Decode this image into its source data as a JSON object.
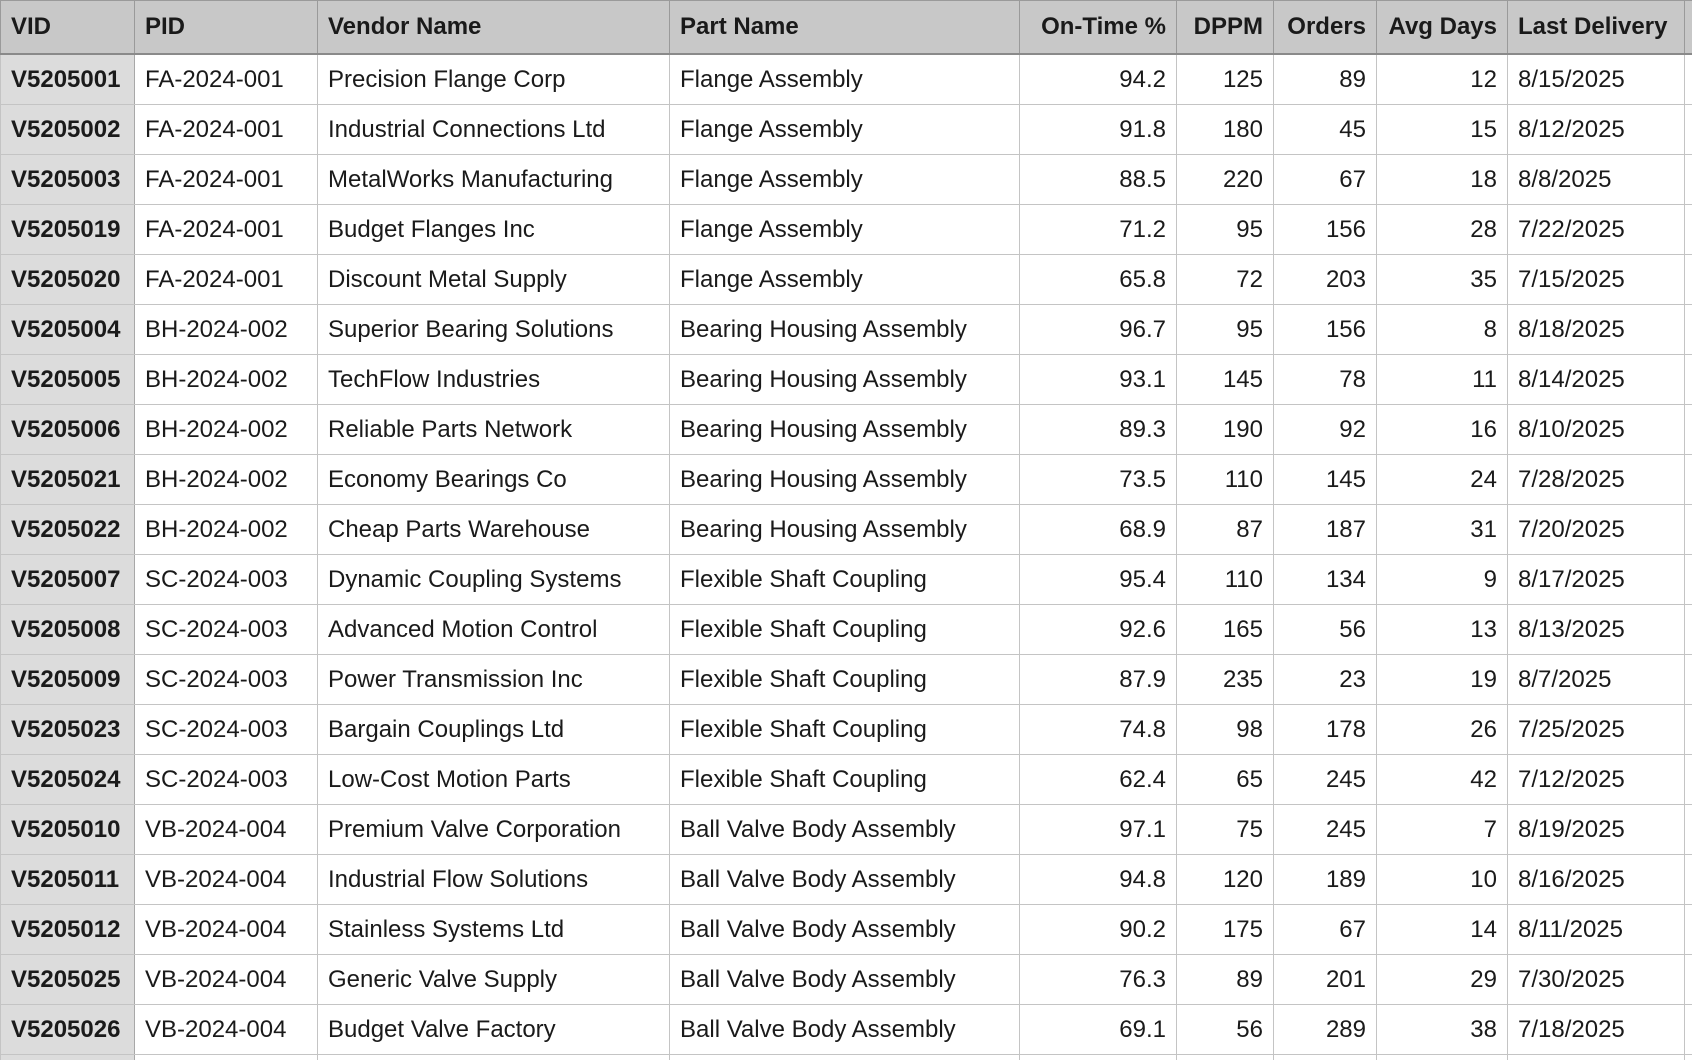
{
  "columns": [
    "VID",
    "PID",
    "Vendor Name",
    "Part Name",
    "On-Time %",
    "DPPM",
    "Orders",
    "Avg Days",
    "Last Delivery"
  ],
  "rows": [
    {
      "vid": "V5205001",
      "pid": "FA-2024-001",
      "vendor": "Precision Flange Corp",
      "part": "Flange Assembly",
      "ontime": "94.2",
      "dppm": "125",
      "orders": "89",
      "avg_days": "12",
      "last_delivery": "8/15/2025"
    },
    {
      "vid": "V5205002",
      "pid": "FA-2024-001",
      "vendor": "Industrial Connections Ltd",
      "part": "Flange Assembly",
      "ontime": "91.8",
      "dppm": "180",
      "orders": "45",
      "avg_days": "15",
      "last_delivery": "8/12/2025"
    },
    {
      "vid": "V5205003",
      "pid": "FA-2024-001",
      "vendor": "MetalWorks Manufacturing",
      "part": "Flange Assembly",
      "ontime": "88.5",
      "dppm": "220",
      "orders": "67",
      "avg_days": "18",
      "last_delivery": "8/8/2025"
    },
    {
      "vid": "V5205019",
      "pid": "FA-2024-001",
      "vendor": "Budget Flanges Inc",
      "part": "Flange Assembly",
      "ontime": "71.2",
      "dppm": "95",
      "orders": "156",
      "avg_days": "28",
      "last_delivery": "7/22/2025"
    },
    {
      "vid": "V5205020",
      "pid": "FA-2024-001",
      "vendor": "Discount Metal Supply",
      "part": "Flange Assembly",
      "ontime": "65.8",
      "dppm": "72",
      "orders": "203",
      "avg_days": "35",
      "last_delivery": "7/15/2025"
    },
    {
      "vid": "V5205004",
      "pid": "BH-2024-002",
      "vendor": "Superior Bearing Solutions",
      "part": "Bearing Housing Assembly",
      "ontime": "96.7",
      "dppm": "95",
      "orders": "156",
      "avg_days": "8",
      "last_delivery": "8/18/2025"
    },
    {
      "vid": "V5205005",
      "pid": "BH-2024-002",
      "vendor": "TechFlow Industries",
      "part": "Bearing Housing Assembly",
      "ontime": "93.1",
      "dppm": "145",
      "orders": "78",
      "avg_days": "11",
      "last_delivery": "8/14/2025"
    },
    {
      "vid": "V5205006",
      "pid": "BH-2024-002",
      "vendor": "Reliable Parts Network",
      "part": "Bearing Housing Assembly",
      "ontime": "89.3",
      "dppm": "190",
      "orders": "92",
      "avg_days": "16",
      "last_delivery": "8/10/2025"
    },
    {
      "vid": "V5205021",
      "pid": "BH-2024-002",
      "vendor": "Economy Bearings Co",
      "part": "Bearing Housing Assembly",
      "ontime": "73.5",
      "dppm": "110",
      "orders": "145",
      "avg_days": "24",
      "last_delivery": "7/28/2025"
    },
    {
      "vid": "V5205022",
      "pid": "BH-2024-002",
      "vendor": "Cheap Parts Warehouse",
      "part": "Bearing Housing Assembly",
      "ontime": "68.9",
      "dppm": "87",
      "orders": "187",
      "avg_days": "31",
      "last_delivery": "7/20/2025"
    },
    {
      "vid": "V5205007",
      "pid": "SC-2024-003",
      "vendor": "Dynamic Coupling Systems",
      "part": "Flexible Shaft Coupling",
      "ontime": "95.4",
      "dppm": "110",
      "orders": "134",
      "avg_days": "9",
      "last_delivery": "8/17/2025"
    },
    {
      "vid": "V5205008",
      "pid": "SC-2024-003",
      "vendor": "Advanced Motion Control",
      "part": "Flexible Shaft Coupling",
      "ontime": "92.6",
      "dppm": "165",
      "orders": "56",
      "avg_days": "13",
      "last_delivery": "8/13/2025"
    },
    {
      "vid": "V5205009",
      "pid": "SC-2024-003",
      "vendor": "Power Transmission Inc",
      "part": "Flexible Shaft Coupling",
      "ontime": "87.9",
      "dppm": "235",
      "orders": "23",
      "avg_days": "19",
      "last_delivery": "8/7/2025"
    },
    {
      "vid": "V5205023",
      "pid": "SC-2024-003",
      "vendor": "Bargain Couplings Ltd",
      "part": "Flexible Shaft Coupling",
      "ontime": "74.8",
      "dppm": "98",
      "orders": "178",
      "avg_days": "26",
      "last_delivery": "7/25/2025"
    },
    {
      "vid": "V5205024",
      "pid": "SC-2024-003",
      "vendor": "Low-Cost Motion Parts",
      "part": "Flexible Shaft Coupling",
      "ontime": "62.4",
      "dppm": "65",
      "orders": "245",
      "avg_days": "42",
      "last_delivery": "7/12/2025"
    },
    {
      "vid": "V5205010",
      "pid": "VB-2024-004",
      "vendor": "Premium Valve Corporation",
      "part": "Ball Valve Body Assembly",
      "ontime": "97.1",
      "dppm": "75",
      "orders": "245",
      "avg_days": "7",
      "last_delivery": "8/19/2025"
    },
    {
      "vid": "V5205011",
      "pid": "VB-2024-004",
      "vendor": "Industrial Flow Solutions",
      "part": "Ball Valve Body Assembly",
      "ontime": "94.8",
      "dppm": "120",
      "orders": "189",
      "avg_days": "10",
      "last_delivery": "8/16/2025"
    },
    {
      "vid": "V5205012",
      "pid": "VB-2024-004",
      "vendor": "Stainless Systems Ltd",
      "part": "Ball Valve Body Assembly",
      "ontime": "90.2",
      "dppm": "175",
      "orders": "67",
      "avg_days": "14",
      "last_delivery": "8/11/2025"
    },
    {
      "vid": "V5205025",
      "pid": "VB-2024-004",
      "vendor": "Generic Valve Supply",
      "part": "Ball Valve Body Assembly",
      "ontime": "76.3",
      "dppm": "89",
      "orders": "201",
      "avg_days": "29",
      "last_delivery": "7/30/2025"
    },
    {
      "vid": "V5205026",
      "pid": "VB-2024-004",
      "vendor": "Budget Valve Factory",
      "part": "Ball Valve Body Assembly",
      "ontime": "69.1",
      "dppm": "56",
      "orders": "289",
      "avg_days": "38",
      "last_delivery": "7/18/2025"
    },
    {
      "vid": "",
      "pid": "",
      "vendor": "",
      "part": "",
      "ontime": "",
      "dppm": "",
      "orders": "",
      "avg_days": "",
      "last_delivery": ""
    }
  ],
  "colors": {
    "header_bg": "#c8c8c8",
    "id_column_bg": "#dcdcdc",
    "gridline": "#c4c4c4"
  }
}
